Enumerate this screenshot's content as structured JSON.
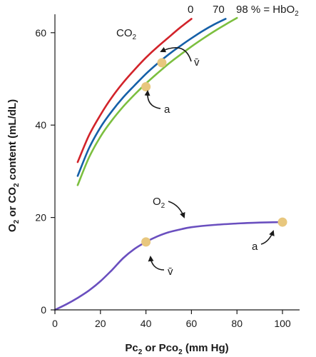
{
  "chart_data": {
    "type": "line",
    "xlabel": "Po2 or Pco2 (mm Hg)",
    "ylabel": "O2 or CO2 content (mL/dL)",
    "xlim": [
      0,
      100
    ],
    "ylim": [
      0,
      65
    ],
    "x_ticks": [
      0,
      20,
      40,
      60,
      80,
      100
    ],
    "y_ticks": [
      0,
      20,
      40,
      60
    ],
    "grid": false,
    "series": [
      {
        "name": "0",
        "color": "#d2232a",
        "x": [
          10,
          15,
          20,
          25,
          30,
          35,
          40,
          45,
          50,
          55,
          60
        ],
        "y": [
          32,
          37.8,
          42.2,
          46,
          49.2,
          52,
          54.6,
          56.9,
          59,
          61.1,
          63
        ]
      },
      {
        "name": "70",
        "color": "#1560a8",
        "x": [
          10,
          15,
          20,
          25,
          30,
          35,
          40,
          45,
          50,
          55,
          60,
          65,
          70,
          75
        ],
        "y": [
          29,
          35,
          39.5,
          43,
          46,
          48.6,
          51.1,
          53.3,
          55.3,
          57.1,
          58.8,
          60.4,
          61.8,
          63
        ]
      },
      {
        "name": "98 % = HbO2",
        "color": "#7cbf3f",
        "x": [
          10,
          15,
          20,
          25,
          30,
          35,
          40,
          45,
          50,
          55,
          60,
          65,
          70,
          75,
          80
        ],
        "y": [
          27,
          33,
          37.5,
          41,
          44,
          46.6,
          49,
          51.2,
          53.3,
          55.2,
          57,
          58.7,
          60.3,
          61.8,
          63.2
        ]
      },
      {
        "name": "O2",
        "color": "#6a4fbf",
        "x": [
          0,
          5,
          10,
          15,
          20,
          25,
          30,
          35,
          40,
          45,
          50,
          55,
          60,
          70,
          80,
          90,
          100
        ],
        "y": [
          0,
          1.2,
          2.6,
          4.2,
          6.2,
          8.6,
          11.2,
          13.2,
          14.7,
          15.9,
          16.8,
          17.4,
          17.9,
          18.4,
          18.7,
          18.9,
          19
        ]
      }
    ],
    "points": [
      {
        "label": "v̄",
        "curve": "CO2",
        "x": 47,
        "y": 53.5,
        "color": "#e8c77e"
      },
      {
        "label": "a",
        "curve": "CO2",
        "x": 40,
        "y": 48.3,
        "color": "#e8c77e"
      },
      {
        "label": "v̄",
        "curve": "O2",
        "x": 40,
        "y": 14.7,
        "color": "#e8c77e"
      },
      {
        "label": "a",
        "curve": "O2",
        "x": 100,
        "y": 19,
        "color": "#e8c77e"
      }
    ],
    "annotations": {
      "co2_label": "CO",
      "co2_sub": "2",
      "o2_label": "O",
      "o2_sub": "2",
      "hb_0": "0",
      "hb_70": "70",
      "hb_98": "98 % = HbO",
      "hb_98_sub": "2",
      "v_bar": "v̄",
      "a": "a"
    },
    "axis_titles": {
      "x_prefix": "Pc",
      "x_sub1": "2",
      "x_mid": " or Pco",
      "x_sub2": "2",
      "x_suffix": " (mm Hg)",
      "y_prefix": "O",
      "y_sub1": "2",
      "y_mid": " or CO",
      "y_sub2": "2",
      "y_suffix": " content (mL/dL)"
    }
  }
}
